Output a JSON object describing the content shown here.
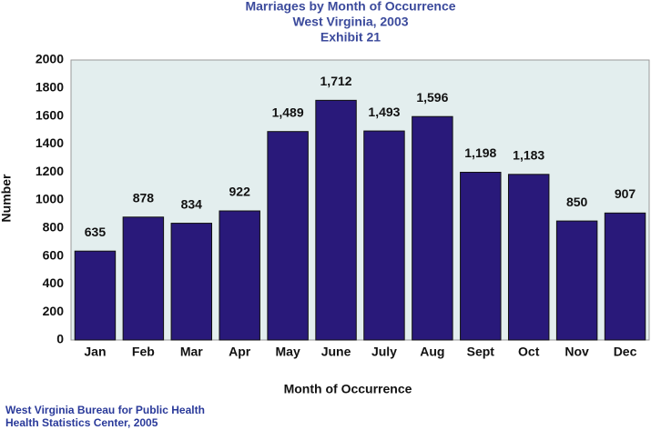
{
  "chart_data": {
    "type": "bar",
    "title": [
      "Marriages by Month of Occurrence",
      "West Virginia, 2003",
      "Exhibit 21"
    ],
    "x_label": "Month of Occurrence",
    "y_label": "Number",
    "source": [
      "West Virginia Bureau for Public Health",
      "Health Statistics Center, 2005"
    ],
    "categories": [
      "Jan",
      "Feb",
      "Mar",
      "Apr",
      "May",
      "June",
      "July",
      "Aug",
      "Sept",
      "Oct",
      "Nov",
      "Dec"
    ],
    "values": [
      635,
      878,
      834,
      922,
      1489,
      1712,
      1493,
      1596,
      1198,
      1183,
      850,
      907
    ],
    "value_labels": [
      "635",
      "878",
      "834",
      "922",
      "1,489",
      "1,712",
      "1,493",
      "1,596",
      "1,198",
      "1,183",
      "850",
      "907"
    ],
    "color": "#29197a",
    "ylim": [
      0,
      2000
    ],
    "yticks": [
      0,
      200,
      400,
      600,
      800,
      1000,
      1200,
      1400,
      1600,
      1800,
      2000
    ],
    "grid": false
  }
}
